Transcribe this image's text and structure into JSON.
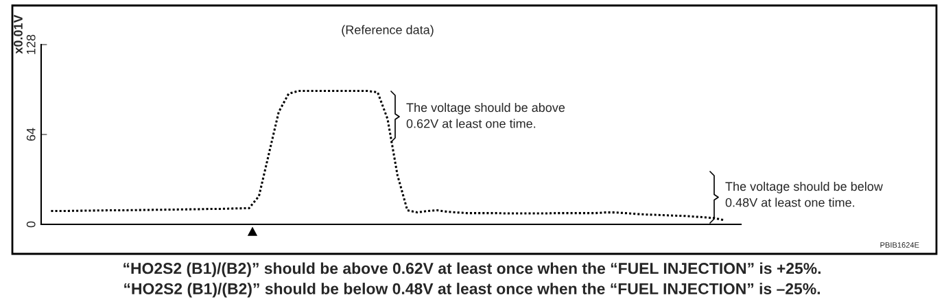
{
  "chart_data": {
    "type": "line",
    "title": "(Reference data)",
    "ylabel": "x0.01V",
    "categories": [
      null,
      null,
      null,
      null,
      null,
      null,
      null,
      null,
      null,
      null,
      null,
      null,
      null,
      null,
      null,
      null,
      null,
      null,
      null,
      null,
      null,
      null,
      null,
      null,
      null,
      null,
      null,
      null,
      null,
      null,
      null,
      null,
      null,
      null,
      null,
      null,
      null,
      null,
      null,
      null,
      null,
      null,
      null,
      null,
      null,
      null,
      null,
      null,
      null,
      null,
      null,
      null,
      null,
      null,
      null,
      null,
      null,
      null,
      null,
      null,
      null,
      null,
      null,
      null,
      null,
      null,
      null,
      null,
      null
    ],
    "series": [
      {
        "color": "#000000",
        "line_style": "dotted",
        "values": [
          9.5,
          9.5,
          9.6,
          9.7,
          9.8,
          9.9,
          10,
          10,
          10.1,
          10.2,
          10.3,
          10.4,
          10.5,
          10.6,
          10.7,
          10.8,
          11,
          11,
          11.2,
          11.4,
          11.5,
          20,
          50,
          80,
          93,
          95,
          95,
          95,
          95,
          95,
          95,
          95,
          95,
          94,
          75,
          35,
          10,
          8.5,
          9.5,
          10,
          9,
          8.5,
          8,
          8,
          8,
          8,
          7.8,
          7.8,
          7.8,
          7.8,
          7.8,
          8,
          8,
          8,
          8,
          8,
          8.5,
          8.5,
          8,
          7.5,
          7,
          6.8,
          6.5,
          6.2,
          6,
          5.5,
          5,
          4.5,
          3
        ]
      }
    ],
    "ylim": [
      0,
      128
    ],
    "yticks": [
      0,
      64,
      128
    ],
    "tick_labels": "y",
    "grid": false,
    "marker": "none",
    "annotations": [
      "The voltage should be above\n0.62V at least one time.",
      "The voltage should be below\n0.48V at least one time.",
      "PBIB1624E",
      "“HO2S2 (B1)/(B2)” should be above 0.62V at least once when the “FUEL INJECTION” is +25%.\n“HO2S2 (B1)/(B2)” should be below 0.48V at least once when the “FUEL INJECTION” is –25%."
    ]
  }
}
